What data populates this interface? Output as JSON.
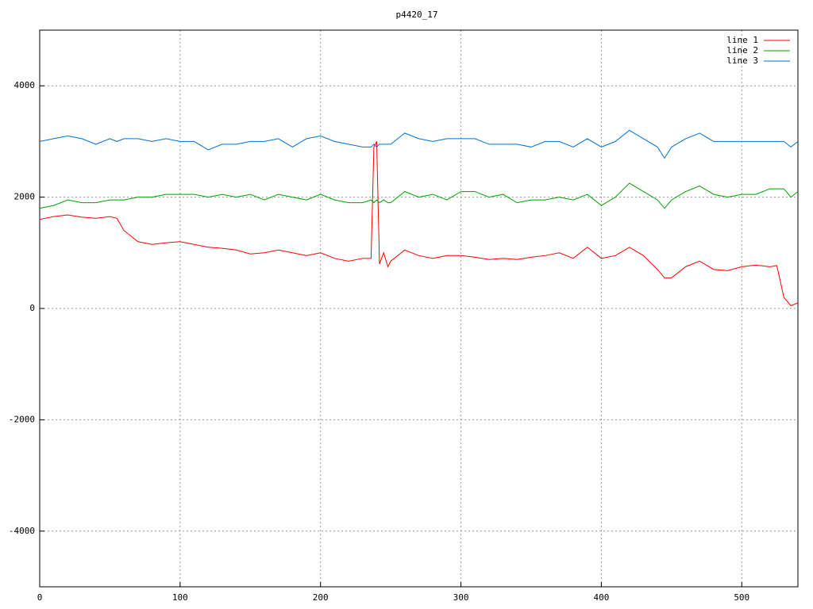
{
  "chart_data": {
    "type": "line",
    "title": "p4420_17",
    "x": [
      0,
      10,
      20,
      30,
      40,
      50,
      55,
      60,
      70,
      80,
      90,
      100,
      110,
      120,
      130,
      140,
      150,
      160,
      170,
      180,
      190,
      200,
      210,
      220,
      230,
      236,
      238,
      240,
      242,
      245,
      248,
      250,
      260,
      270,
      280,
      290,
      300,
      310,
      320,
      330,
      340,
      350,
      360,
      370,
      380,
      390,
      400,
      410,
      420,
      430,
      440,
      445,
      450,
      460,
      470,
      480,
      490,
      500,
      510,
      520,
      525,
      530,
      535,
      540
    ],
    "series": [
      {
        "name": "line 1",
        "color": "#ff0000",
        "values": [
          1600,
          1650,
          1680,
          1640,
          1620,
          1650,
          1620,
          1400,
          1200,
          1150,
          1180,
          1200,
          1150,
          1100,
          1080,
          1050,
          980,
          1000,
          1050,
          1000,
          950,
          1000,
          900,
          850,
          900,
          900,
          2900,
          3000,
          800,
          1000,
          750,
          850,
          1050,
          950,
          900,
          950,
          950,
          920,
          880,
          900,
          880,
          920,
          950,
          1000,
          900,
          1100,
          900,
          950,
          1100,
          950,
          700,
          550,
          550,
          750,
          850,
          700,
          680,
          750,
          780,
          750,
          770,
          200,
          50,
          100
        ]
      },
      {
        "name": "line 2",
        "color": "#00a000",
        "values": [
          1800,
          1850,
          1950,
          1900,
          1900,
          1950,
          1950,
          1950,
          2000,
          2000,
          2050,
          2050,
          2050,
          2000,
          2050,
          2000,
          2050,
          1950,
          2050,
          2000,
          1950,
          2050,
          1950,
          1900,
          1900,
          1950,
          1900,
          1950,
          1900,
          1950,
          1900,
          1900,
          2100,
          2000,
          2050,
          1950,
          2100,
          2100,
          2000,
          2050,
          1900,
          1950,
          1950,
          2000,
          1950,
          2050,
          1850,
          2000,
          2250,
          2100,
          1950,
          1800,
          1950,
          2100,
          2200,
          2050,
          2000,
          2050,
          2050,
          2150,
          2150,
          2150,
          2000,
          2100
        ]
      },
      {
        "name": "line 3",
        "color": "#0070d0",
        "values": [
          3000,
          3050,
          3100,
          3050,
          2950,
          3050,
          3000,
          3050,
          3050,
          3000,
          3050,
          3000,
          3000,
          2850,
          2950,
          2950,
          3000,
          3000,
          3050,
          2900,
          3050,
          3100,
          3000,
          2950,
          2900,
          2900,
          2950,
          2900,
          2950,
          2950,
          2950,
          2950,
          3150,
          3050,
          3000,
          3050,
          3050,
          3050,
          2950,
          2950,
          2950,
          2900,
          3000,
          3000,
          2900,
          3050,
          2900,
          3000,
          3200,
          3050,
          2900,
          2700,
          2900,
          3050,
          3150,
          3000,
          3000,
          3000,
          3000,
          3000,
          3000,
          3000,
          2900,
          3000
        ]
      }
    ],
    "xlim": [
      0,
      540
    ],
    "xticks": [
      0,
      100,
      200,
      300,
      400,
      500
    ],
    "ylim": [
      -5000,
      5000
    ],
    "yticks": [
      -4000,
      -2000,
      0,
      2000,
      4000
    ],
    "grid": true,
    "legend": "top-right"
  }
}
